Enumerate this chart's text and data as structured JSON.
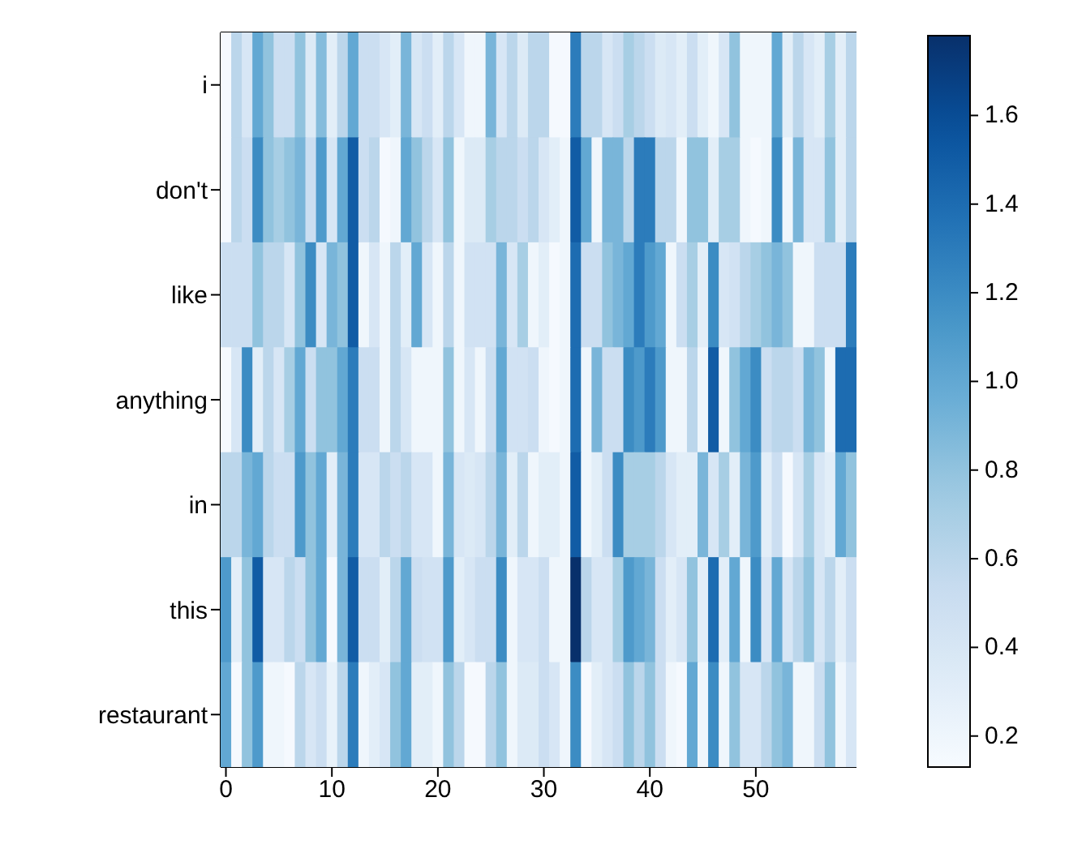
{
  "chart_data": {
    "type": "heatmap",
    "categories": [
      "0",
      null,
      null,
      null,
      null,
      null,
      null,
      null,
      null,
      null,
      "10",
      null,
      null,
      null,
      null,
      null,
      null,
      null,
      null,
      null,
      "20",
      null,
      null,
      null,
      null,
      null,
      null,
      null,
      null,
      null,
      "30",
      null,
      null,
      null,
      null,
      null,
      null,
      null,
      null,
      null,
      "40",
      null,
      null,
      null,
      null,
      null,
      null,
      null,
      null,
      null,
      "50",
      null,
      null,
      null,
      null,
      null,
      null,
      null,
      null,
      null
    ],
    "y_categories": [
      "i",
      "don't",
      "like",
      "anything",
      "in",
      "this",
      "restaurant"
    ],
    "cells": [
      [
        0.15,
        0.6,
        0.4,
        1.0,
        0.8,
        0.5,
        0.5,
        0.8,
        0.35,
        0.85,
        0.3,
        0.6,
        1.0,
        0.5,
        0.5,
        0.4,
        0.3,
        0.9,
        0.4,
        0.5,
        0.3,
        0.6,
        0.4,
        0.2,
        0.2,
        0.9,
        0.4,
        0.6,
        0.35,
        0.6,
        0.6,
        0.15,
        0.15,
        1.3,
        0.6,
        0.6,
        0.4,
        0.5,
        0.7,
        0.6,
        0.5,
        0.35,
        0.4,
        0.3,
        0.5,
        0.3,
        0.2,
        0.4,
        0.8,
        0.2,
        0.2,
        0.2,
        1.0,
        0.3,
        0.6,
        0.4,
        0.3,
        0.7,
        0.3,
        0.6
      ],
      [
        0.15,
        0.6,
        0.5,
        1.2,
        0.8,
        0.7,
        0.8,
        0.9,
        0.5,
        1.1,
        0.4,
        1.0,
        1.5,
        0.5,
        0.6,
        0.15,
        0.2,
        1.0,
        0.8,
        0.6,
        0.4,
        0.8,
        0.2,
        0.35,
        0.35,
        0.7,
        0.6,
        0.6,
        0.5,
        0.6,
        0.4,
        0.3,
        0.2,
        1.5,
        1.0,
        0.2,
        0.9,
        0.9,
        0.6,
        1.3,
        1.3,
        0.6,
        0.6,
        0.2,
        0.8,
        0.8,
        0.3,
        0.7,
        0.7,
        0.2,
        0.15,
        0.2,
        1.2,
        0.2,
        0.9,
        0.4,
        0.4,
        0.8,
        0.3,
        0.6
      ],
      [
        0.5,
        0.5,
        0.5,
        0.8,
        0.6,
        0.6,
        0.4,
        0.8,
        1.2,
        0.4,
        0.9,
        0.8,
        1.5,
        0.2,
        0.4,
        0.2,
        0.6,
        0.3,
        1.0,
        0.4,
        0.2,
        0.6,
        0.2,
        0.45,
        0.45,
        0.45,
        0.9,
        0.4,
        0.7,
        0.2,
        0.3,
        0.15,
        0.2,
        1.4,
        0.5,
        0.5,
        0.8,
        0.9,
        1.0,
        1.3,
        1.1,
        1.0,
        0.2,
        0.5,
        0.7,
        0.3,
        1.2,
        0.4,
        0.45,
        0.6,
        0.7,
        0.8,
        0.9,
        0.8,
        0.2,
        0.2,
        0.5,
        0.5,
        0.5,
        1.3
      ],
      [
        0.15,
        0.4,
        1.2,
        0.3,
        0.6,
        0.4,
        0.7,
        1.0,
        0.5,
        0.8,
        0.8,
        1.0,
        1.3,
        0.5,
        0.5,
        0.2,
        0.6,
        0.4,
        0.2,
        0.2,
        0.2,
        0.8,
        0.2,
        0.4,
        0.2,
        0.5,
        1.0,
        0.45,
        0.45,
        0.5,
        0.2,
        0.15,
        0.2,
        1.4,
        0.2,
        0.9,
        0.5,
        0.5,
        1.2,
        1.1,
        1.3,
        1.1,
        0.2,
        0.2,
        0.6,
        0.2,
        1.5,
        0.2,
        0.8,
        1.0,
        1.2,
        0.5,
        0.6,
        0.6,
        0.5,
        0.9,
        0.8,
        0.2,
        1.4,
        1.4
      ],
      [
        0.6,
        0.6,
        0.9,
        1.0,
        0.6,
        0.5,
        0.5,
        1.1,
        0.8,
        1.0,
        0.3,
        0.9,
        1.3,
        0.4,
        0.4,
        0.6,
        0.5,
        0.6,
        0.4,
        0.4,
        0.2,
        0.9,
        0.4,
        0.35,
        0.4,
        0.6,
        0.9,
        0.3,
        0.6,
        0.2,
        0.3,
        0.3,
        0.2,
        1.5,
        0.2,
        0.3,
        0.5,
        1.2,
        0.7,
        0.7,
        0.7,
        0.6,
        0.4,
        0.3,
        0.3,
        0.9,
        0.4,
        0.7,
        0.3,
        0.9,
        1.1,
        0.3,
        0.5,
        0.15,
        0.4,
        0.7,
        0.4,
        0.3,
        1.0,
        0.8
      ],
      [
        1.1,
        0.3,
        0.8,
        1.5,
        0.4,
        0.4,
        0.6,
        0.5,
        0.8,
        1.0,
        0.15,
        0.9,
        1.5,
        0.5,
        0.5,
        0.3,
        0.6,
        1.0,
        0.5,
        0.45,
        0.45,
        1.1,
        0.3,
        0.4,
        0.5,
        0.5,
        1.2,
        0.2,
        0.4,
        0.4,
        0.5,
        0.2,
        0.2,
        1.78,
        0.6,
        0.4,
        0.4,
        0.7,
        1.1,
        1.0,
        0.9,
        0.5,
        0.3,
        0.4,
        0.8,
        0.3,
        1.4,
        0.3,
        1.0,
        0.2,
        1.2,
        0.4,
        1.0,
        0.4,
        0.6,
        0.8,
        0.4,
        0.6,
        0.3,
        0.5
      ],
      [
        1.0,
        0.15,
        0.8,
        1.1,
        0.2,
        0.2,
        0.15,
        0.6,
        0.4,
        0.5,
        0.25,
        0.6,
        1.3,
        0.2,
        0.3,
        0.4,
        0.8,
        1.0,
        0.3,
        0.3,
        0.2,
        0.8,
        0.6,
        0.15,
        0.15,
        0.6,
        0.8,
        0.2,
        0.35,
        0.35,
        0.5,
        0.4,
        0.2,
        1.2,
        0.15,
        0.3,
        0.4,
        0.5,
        0.8,
        0.6,
        0.8,
        0.5,
        0.2,
        0.15,
        1.0,
        0.2,
        1.2,
        0.2,
        0.8,
        0.4,
        0.4,
        0.6,
        0.8,
        0.9,
        0.2,
        0.2,
        0.5,
        0.8,
        0.2,
        0.4
      ]
    ],
    "clim": [
      0.13,
      1.78
    ],
    "cticks": [
      0.2,
      0.4,
      0.6,
      0.8,
      {
        "value": 1.0,
        "label": "1.0"
      },
      1.2,
      1.4,
      1.6
    ]
  }
}
